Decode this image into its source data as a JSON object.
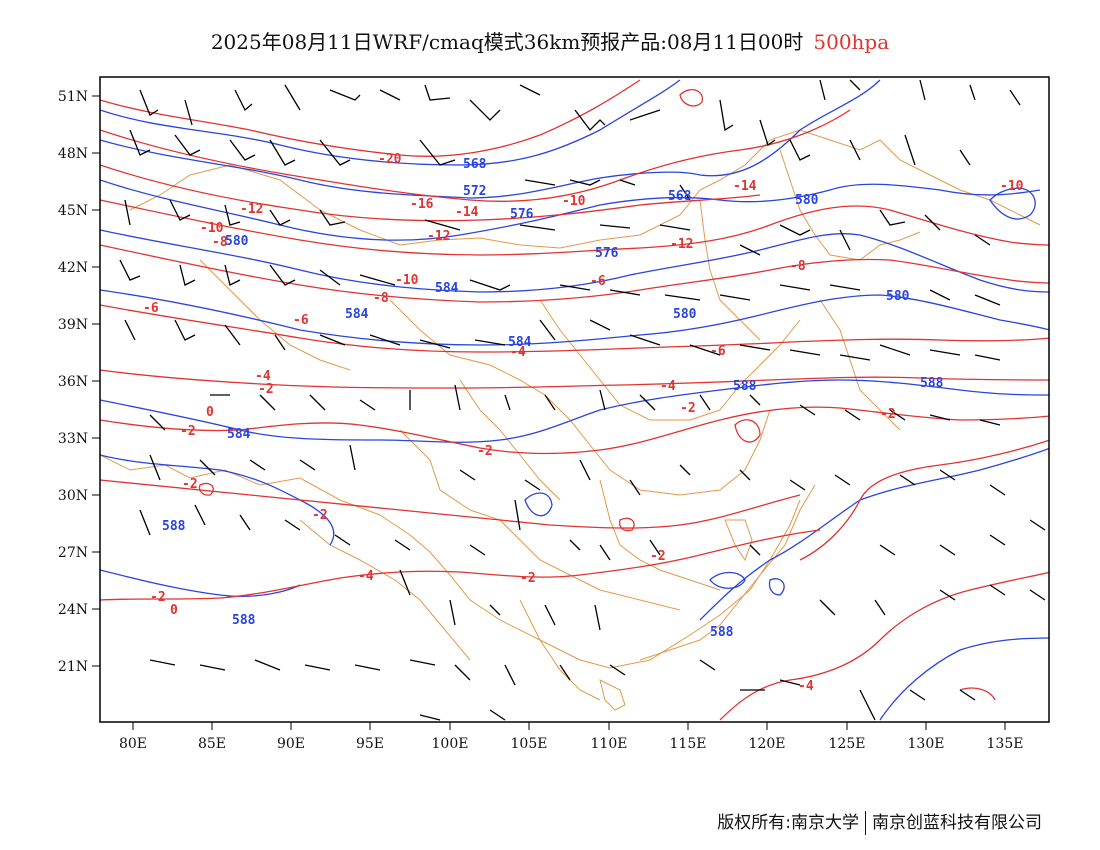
{
  "title": {
    "main": "2025年08月11日WRF/cmaq模式36km预报产品:08月11日00时",
    "level": "500hpa"
  },
  "colors": {
    "height_contours": "#2a44e0",
    "temperature_contours": "#e23232",
    "borders": "#e09a4a",
    "wind_barbs": "#000000"
  },
  "axes": {
    "lon_ticks": [
      "80E",
      "85E",
      "90E",
      "95E",
      "100E",
      "105E",
      "110E",
      "115E",
      "120E",
      "125E",
      "130E",
      "135E"
    ],
    "lat_ticks": [
      "51N",
      "48N",
      "45N",
      "42N",
      "39N",
      "36N",
      "33N",
      "30N",
      "27N",
      "24N",
      "21N"
    ]
  },
  "height_labels": [
    "580",
    "584",
    "568",
    "572",
    "576",
    "568",
    "580",
    "584",
    "576",
    "580",
    "580",
    "584",
    "588",
    "588",
    "584",
    "588",
    "588",
    "588"
  ],
  "temperature_labels": [
    "-20",
    "-16",
    "-14",
    "-12",
    "-12",
    "-10",
    "-8",
    "-10",
    "-8",
    "-6",
    "-6",
    "-4",
    "-2",
    "0",
    "-2",
    "-2",
    "-2",
    "-4",
    "-10",
    "-12",
    "-14",
    "-8",
    "-6",
    "-6",
    "-4",
    "-2",
    "-2",
    "-2",
    "-2",
    "-2",
    "-4",
    "-2",
    "0",
    "-4",
    "-10"
  ],
  "footer": {
    "left": "版权所有:南京大学",
    "right": "南京创蓝科技有限公司"
  }
}
